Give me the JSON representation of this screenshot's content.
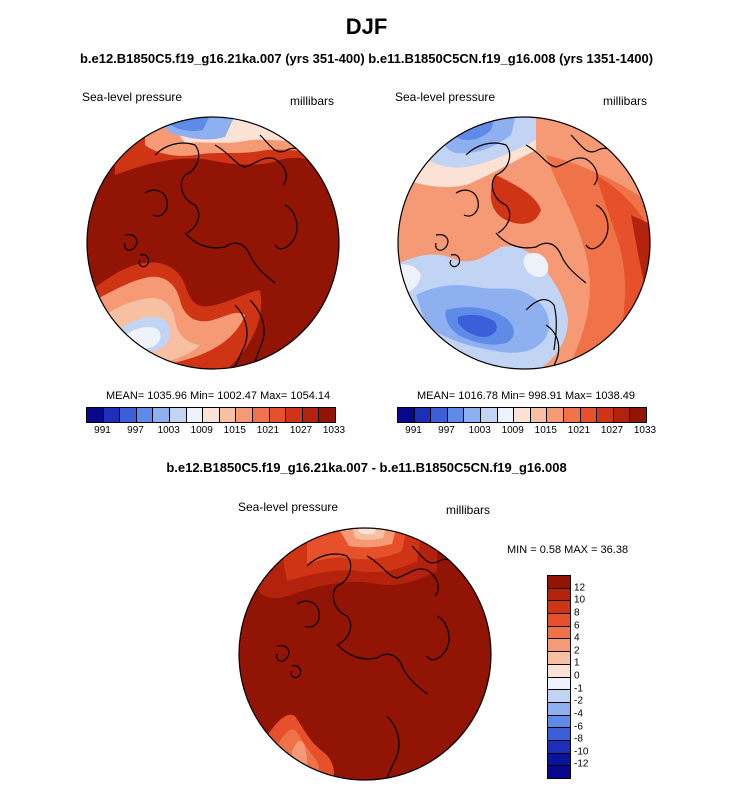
{
  "header": {
    "season": "DJF",
    "subtitle": "b.e12.B1850C5.f19_g16.21ka.007 (yrs 351-400) b.e11.B1850C5CN.f19_g16.008 (yrs 1351-1400)"
  },
  "panels": [
    {
      "variable": "Sea-level pressure",
      "units": "millibars",
      "stats": "MEAN= 1035.96  Min= 1002.47  Max= 1054.14"
    },
    {
      "variable": "Sea-level pressure",
      "units": "millibars",
      "stats": "MEAN= 1016.78  Min= 998.91  Max= 1038.49"
    }
  ],
  "diff_panel": {
    "title": "b.e12.B1850C5.f19_g16.21ka.007 - b.e11.B1850C5CN.f19_g16.008",
    "variable": "Sea-level pressure",
    "units": "millibars",
    "stats": "MIN =   0.58 MAX =  36.38"
  },
  "horizontal_colorbar": {
    "colors": [
      "#08088c",
      "#1d2fb8",
      "#3a5fd8",
      "#5f8be8",
      "#8fb0f0",
      "#c2d4f4",
      "#eef2fa",
      "#fbe2d4",
      "#f8c0a2",
      "#f59a74",
      "#ef7248",
      "#e6502a",
      "#cf3414",
      "#b2220c",
      "#921405"
    ],
    "tick_labels": [
      "991",
      "997",
      "1003",
      "1009",
      "1015",
      "1021",
      "1027",
      "1033"
    ]
  },
  "vertical_colorbar": {
    "colors": [
      "#921405",
      "#b2220c",
      "#cf3414",
      "#e6502a",
      "#ef7248",
      "#f59a74",
      "#f8c0a2",
      "#fbe2d4",
      "#eef2fa",
      "#c2d4f4",
      "#8fb0f0",
      "#5f8be8",
      "#3a5fd8",
      "#1d2fb8",
      "#0a159e",
      "#08088c"
    ],
    "tick_labels": [
      "12",
      "10",
      "8",
      "6",
      "4",
      "2",
      "1",
      "0",
      "-1",
      "-2",
      "-4",
      "-6",
      "-8",
      "-10",
      "-12"
    ]
  }
}
